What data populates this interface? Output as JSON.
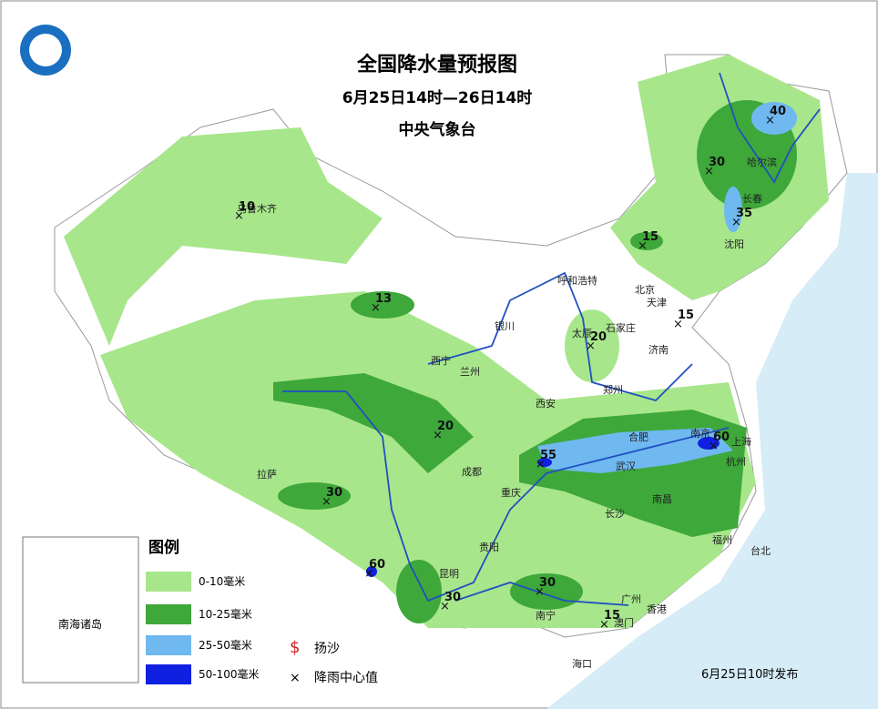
{
  "header": {
    "title": "全国降水量预报图",
    "period": "6月25日14时—26日14时",
    "issuer": "中央气象台"
  },
  "legend": {
    "title": "图例",
    "items": [
      "0-10毫米",
      "10-25毫米",
      "25-50毫米",
      "50-100毫米"
    ],
    "symbols": [
      "扬沙",
      "降雨中心值"
    ]
  },
  "inset": {
    "label": "南海诸岛"
  },
  "cities": [
    "乌鲁木齐",
    "哈尔滨",
    "长春",
    "沈阳",
    "呼和浩特",
    "北京",
    "天津",
    "石家庄",
    "太原",
    "银川",
    "济南",
    "西宁",
    "兰州",
    "郑州",
    "西安",
    "合肥",
    "南京",
    "上海",
    "杭州",
    "武汉",
    "成都",
    "拉萨",
    "重庆",
    "长沙",
    "南昌",
    "福州",
    "台北",
    "贵阳",
    "昆明",
    "南宁",
    "广州",
    "香港",
    "澳门",
    "海口"
  ],
  "centers": [
    10,
    40,
    30,
    35,
    15,
    13,
    15,
    20,
    20,
    55,
    60,
    30,
    60,
    30,
    30,
    15
  ],
  "footer": "6月25日10时发布"
}
